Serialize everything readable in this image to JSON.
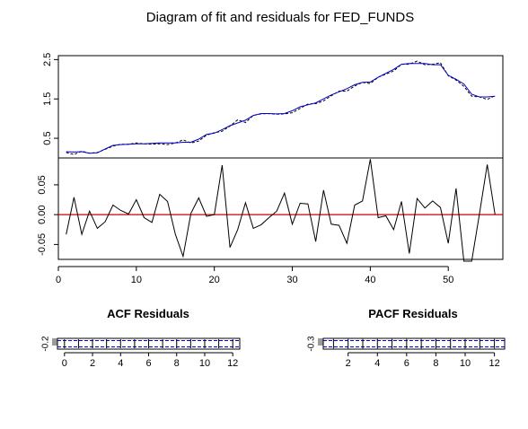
{
  "chart_data": [
    {
      "type": "line",
      "title": "Diagram of fit and residuals for FED_FUNDS",
      "ylabel": "",
      "xlabel": "",
      "xlim": [
        1,
        56
      ],
      "ylim": [
        0,
        2.6
      ],
      "yticks": [
        "0.5",
        "1.5",
        "2.5"
      ],
      "series": [
        {
          "role": "actual",
          "color": "#000000",
          "style": "dashed",
          "x": [
            1,
            2,
            3,
            4,
            5,
            6,
            7,
            8,
            9,
            10,
            11,
            12,
            13,
            14,
            15,
            16,
            17,
            18,
            19,
            20,
            21,
            22,
            23,
            24,
            25,
            26,
            27,
            28,
            29,
            30,
            31,
            32,
            33,
            34,
            35,
            36,
            37,
            38,
            39,
            40,
            41,
            42,
            43,
            44,
            45,
            46,
            47,
            48,
            49,
            50,
            51,
            52,
            53,
            54,
            55,
            56
          ],
          "values": [
            0.14,
            0.09,
            0.17,
            0.12,
            0.14,
            0.22,
            0.3,
            0.35,
            0.35,
            0.38,
            0.36,
            0.35,
            0.36,
            0.34,
            0.38,
            0.46,
            0.38,
            0.43,
            0.58,
            0.64,
            0.68,
            0.81,
            0.97,
            0.9,
            1.08,
            1.12,
            1.13,
            1.11,
            1.12,
            1.15,
            1.26,
            1.37,
            1.38,
            1.45,
            1.58,
            1.7,
            1.7,
            1.83,
            1.92,
            1.89,
            2.05,
            2.13,
            2.21,
            2.38,
            2.38,
            2.46,
            2.37,
            2.38,
            2.42,
            2.09,
            1.98,
            1.82,
            1.57,
            1.55,
            1.49,
            1.58
          ]
        },
        {
          "role": "fitted",
          "color": "#0000cc",
          "style": "solid",
          "x": [
            1,
            2,
            3,
            4,
            5,
            6,
            7,
            8,
            9,
            10,
            11,
            12,
            13,
            14,
            15,
            16,
            17,
            18,
            19,
            20,
            21,
            22,
            23,
            24,
            25,
            26,
            27,
            28,
            29,
            30,
            31,
            32,
            33,
            34,
            35,
            36,
            37,
            38,
            39,
            40,
            41,
            42,
            43,
            44,
            45,
            46,
            47,
            48,
            49,
            50,
            51,
            52,
            53,
            54,
            55,
            56
          ],
          "values": [
            0.16,
            0.15,
            0.16,
            0.12,
            0.13,
            0.23,
            0.32,
            0.34,
            0.35,
            0.36,
            0.36,
            0.37,
            0.38,
            0.38,
            0.38,
            0.4,
            0.4,
            0.48,
            0.6,
            0.63,
            0.72,
            0.82,
            0.89,
            0.96,
            1.08,
            1.13,
            1.13,
            1.12,
            1.13,
            1.2,
            1.3,
            1.35,
            1.4,
            1.5,
            1.6,
            1.68,
            1.76,
            1.86,
            1.92,
            1.93,
            2.05,
            2.15,
            2.25,
            2.38,
            2.4,
            2.4,
            2.4,
            2.37,
            2.37,
            2.1,
            2.0,
            1.88,
            1.62,
            1.55,
            1.55,
            1.57
          ]
        }
      ]
    },
    {
      "type": "line",
      "title": "",
      "xlabel": "",
      "ylabel": "",
      "xlim": [
        0,
        57
      ],
      "ylim": [
        -0.075,
        0.095
      ],
      "xticks": [
        "0",
        "10",
        "20",
        "30",
        "40",
        "50"
      ],
      "yticks": [
        "-0.05",
        "0.00",
        "0.05"
      ],
      "reference_line": {
        "y": 0,
        "color": "#cc0000"
      },
      "series": [
        {
          "role": "residuals",
          "color": "#000000",
          "x": [
            1,
            2,
            3,
            4,
            5,
            6,
            7,
            8,
            9,
            10,
            11,
            12,
            13,
            14,
            15,
            16,
            17,
            18,
            19,
            20,
            21,
            22,
            23,
            24,
            25,
            26,
            27,
            28,
            29,
            30,
            31,
            32,
            33,
            34,
            35,
            36,
            37,
            38,
            39,
            40,
            41,
            42,
            43,
            44,
            45,
            46,
            47,
            48,
            49,
            50,
            51,
            52,
            53,
            54,
            55,
            56
          ],
          "values": [
            -0.033,
            0.029,
            -0.033,
            0.006,
            -0.023,
            -0.012,
            0.016,
            0.007,
            0.001,
            0.025,
            -0.005,
            -0.013,
            0.034,
            0.022,
            -0.033,
            -0.07,
            0.002,
            0.028,
            -0.003,
            0.0,
            0.083,
            -0.055,
            -0.025,
            0.02,
            -0.023,
            -0.017,
            -0.005,
            0.006,
            0.036,
            -0.016,
            0.019,
            0.018,
            -0.045,
            0.041,
            -0.016,
            -0.018,
            -0.048,
            0.016,
            0.023,
            0.093,
            -0.005,
            -0.002,
            -0.025,
            0.022,
            -0.065,
            0.027,
            0.011,
            0.023,
            0.012,
            -0.048,
            0.044,
            -0.078,
            -0.078,
            0.001,
            0.084,
            0.0
          ]
        }
      ]
    },
    {
      "type": "bar",
      "title": "ACF Residuals",
      "xlabel": "",
      "ylabel": "",
      "xlim": [
        -0.5,
        12.5
      ],
      "ylim": [
        -0.22,
        0.02
      ],
      "xticks": [
        "0",
        "2",
        "4",
        "6",
        "8",
        "10",
        "12"
      ],
      "yticks": [
        "-0.2"
      ],
      "confidence_band": [
        -0.26,
        0.26
      ],
      "x": [
        0,
        1,
        2,
        3,
        4,
        5,
        6,
        7,
        8,
        9,
        10,
        11,
        12
      ],
      "values": [
        -0.2,
        -0.2,
        -0.2,
        -0.2,
        -0.2,
        -0.2,
        -0.2,
        -0.2,
        -0.2,
        -0.2,
        -0.2,
        -0.2,
        -0.2
      ]
    },
    {
      "type": "bar",
      "title": "PACF Residuals",
      "xlabel": "",
      "ylabel": "",
      "xlim": [
        0.3,
        12.7
      ],
      "ylim": [
        -0.32,
        0.02
      ],
      "xticks": [
        "2",
        "4",
        "6",
        "8",
        "10",
        "12"
      ],
      "yticks": [
        "-0.3"
      ],
      "confidence_band": [
        -0.26,
        0.26
      ],
      "x": [
        1,
        2,
        3,
        4,
        5,
        6,
        7,
        8,
        9,
        10,
        11,
        12
      ],
      "values": [
        -0.3,
        -0.3,
        -0.3,
        -0.3,
        -0.3,
        -0.3,
        -0.3,
        -0.3,
        -0.3,
        -0.3,
        -0.3,
        -0.3
      ]
    }
  ]
}
